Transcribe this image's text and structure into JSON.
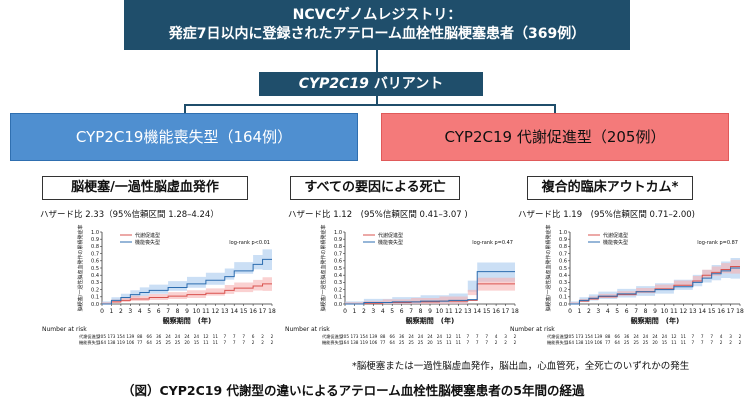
{
  "header": {
    "registry_line1": "NCVCゲノムレジストリ：",
    "registry_line2": "発症7日以内に登録されたアテローム血栓性脳梗塞患者（369例）",
    "variant_italic": "CYP2C19",
    "variant_rest": " バリアント"
  },
  "groups": {
    "lof_label": "CYP2C19機能喪失型（164例）",
    "gof_label": "CYP2C19 代謝促進型（205例）"
  },
  "common": {
    "y_axis_label": "脳梗塞/一過性脳虚血発作の累積発症率",
    "x_axis_label": "観察期間　(年)",
    "legend_gof": "代謝促進型",
    "legend_lof": "機能喪失型",
    "number_at_risk": "Number at risk",
    "risk_row_gof_label": "代謝促進型",
    "risk_row_lof_label": "機能喪失型"
  },
  "colors": {
    "dark_navy": "#1f4e6b",
    "lof_blue": "#4f8fd0",
    "gof_red": "#f47a7a",
    "curve_red": "#d9534f",
    "curve_blue": "#2c6db0",
    "ci_red": "#f6b3b3",
    "ci_blue": "#a9c9ef"
  },
  "chart_data": [
    {
      "type": "line",
      "title": "脳梗塞/一過性脳虚血発作",
      "hazard_ratio": "ハザード比 2.33（95%信頼区間 1.28–4.24）",
      "logrank": "log-rank p<0.01",
      "x_ticks": [
        "0",
        "1",
        "2",
        "3",
        "4",
        "5",
        "6",
        "7",
        "8",
        "9",
        "10",
        "11",
        "12",
        "13",
        "14",
        "15",
        "16",
        "17",
        "18"
      ],
      "y_ticks": [
        "0.0",
        "0.1",
        "0.2",
        "0.3",
        "0.4",
        "0.5",
        "0.6",
        "0.7",
        "0.8",
        "0.9",
        "1.0"
      ],
      "xlim": [
        0,
        18
      ],
      "ylim": [
        0,
        1
      ],
      "series": [
        {
          "name": "代謝促進型",
          "color": "#d9534f",
          "x": [
            0,
            1,
            2,
            3,
            5,
            7,
            9,
            11,
            13,
            14,
            16,
            17,
            18
          ],
          "y": [
            0.0,
            0.03,
            0.05,
            0.07,
            0.09,
            0.11,
            0.13,
            0.15,
            0.19,
            0.22,
            0.25,
            0.28,
            0.28
          ]
        },
        {
          "name": "機能喪失型",
          "color": "#2c6db0",
          "x": [
            0,
            1,
            2,
            3,
            4,
            5,
            7,
            9,
            11,
            13,
            14,
            16,
            17,
            18
          ],
          "y": [
            0.0,
            0.05,
            0.09,
            0.13,
            0.16,
            0.19,
            0.23,
            0.28,
            0.33,
            0.38,
            0.46,
            0.55,
            0.62,
            0.62
          ]
        }
      ],
      "risk_table": {
        "gof": [
          "205",
          "173",
          "154",
          "139",
          "88",
          "66",
          "36",
          "24",
          "24",
          "24",
          "24",
          "12",
          "11",
          "7",
          "7",
          "7",
          "6",
          "2",
          "2"
        ],
        "lof": [
          "164",
          "138",
          "119",
          "106",
          "77",
          "64",
          "25",
          "25",
          "25",
          "20",
          "15",
          "11",
          "11",
          "7",
          "7",
          "7",
          "2",
          "2",
          "2"
        ]
      }
    },
    {
      "type": "line",
      "title": "すべての要因による死亡",
      "hazard_ratio": "ハザード比 1.12　(95%信頼区間 0.41–3.07 )",
      "logrank": "log-rank p=0.47",
      "x_ticks": [
        "0",
        "1",
        "2",
        "3",
        "4",
        "5",
        "6",
        "7",
        "8",
        "9",
        "10",
        "11",
        "12",
        "13",
        "14",
        "15",
        "16",
        "17",
        "18"
      ],
      "y_ticks": [
        "0.0",
        "0.1",
        "0.2",
        "0.3",
        "0.4",
        "0.5",
        "0.6",
        "0.7",
        "0.8",
        "0.9",
        "1.0"
      ],
      "xlim": [
        0,
        18
      ],
      "ylim": [
        0,
        1
      ],
      "series": [
        {
          "name": "代謝促進型",
          "color": "#d9534f",
          "x": [
            0,
            2,
            4,
            7,
            10,
            13,
            14,
            18
          ],
          "y": [
            0.0,
            0.01,
            0.02,
            0.03,
            0.04,
            0.05,
            0.28,
            0.28
          ]
        },
        {
          "name": "機能喪失型",
          "color": "#2c6db0",
          "x": [
            0,
            2,
            5,
            8,
            11,
            13,
            14,
            18
          ],
          "y": [
            0.0,
            0.02,
            0.03,
            0.04,
            0.05,
            0.06,
            0.45,
            0.45
          ]
        }
      ],
      "risk_table": {
        "gof": [
          "205",
          "173",
          "154",
          "139",
          "88",
          "66",
          "36",
          "24",
          "24",
          "24",
          "24",
          "12",
          "11",
          "7",
          "7",
          "7",
          "4",
          "3",
          "2"
        ],
        "lof": [
          "164",
          "138",
          "119",
          "106",
          "77",
          "64",
          "25",
          "25",
          "25",
          "20",
          "15",
          "11",
          "11",
          "7",
          "7",
          "7",
          "2",
          "2",
          "2"
        ]
      }
    },
    {
      "type": "line",
      "title": "複合的臨床アウトカム*",
      "hazard_ratio": "ハザード比 1.19　(95%信頼区間 0.71–2.00)",
      "logrank": "log-rank p=0.87",
      "x_ticks": [
        "0",
        "1",
        "2",
        "3",
        "4",
        "5",
        "6",
        "7",
        "8",
        "9",
        "10",
        "11",
        "12",
        "13",
        "14",
        "15",
        "16",
        "17",
        "18"
      ],
      "y_ticks": [
        "0.0",
        "0.1",
        "0.2",
        "0.3",
        "0.4",
        "0.5",
        "0.6",
        "0.7",
        "0.8",
        "0.9",
        "1.0"
      ],
      "xlim": [
        0,
        18
      ],
      "ylim": [
        0,
        1
      ],
      "series": [
        {
          "name": "代謝促進型",
          "color": "#d9534f",
          "x": [
            0,
            1,
            2,
            3,
            5,
            7,
            9,
            11,
            13,
            14,
            15,
            16,
            17,
            18
          ],
          "y": [
            0.0,
            0.04,
            0.07,
            0.1,
            0.13,
            0.17,
            0.21,
            0.26,
            0.32,
            0.4,
            0.44,
            0.48,
            0.52,
            0.52
          ]
        },
        {
          "name": "機能喪失型",
          "color": "#2c6db0",
          "x": [
            0,
            1,
            2,
            3,
            5,
            7,
            9,
            11,
            13,
            14,
            15,
            16,
            17,
            18
          ],
          "y": [
            0.0,
            0.05,
            0.08,
            0.11,
            0.14,
            0.17,
            0.2,
            0.24,
            0.3,
            0.36,
            0.42,
            0.46,
            0.5,
            0.5
          ]
        }
      ],
      "risk_table": {
        "gof": [
          "205",
          "173",
          "154",
          "139",
          "88",
          "66",
          "36",
          "24",
          "24",
          "24",
          "24",
          "12",
          "11",
          "7",
          "7",
          "7",
          "4",
          "3",
          "2"
        ],
        "lof": [
          "164",
          "138",
          "119",
          "106",
          "77",
          "64",
          "25",
          "25",
          "25",
          "20",
          "15",
          "11",
          "11",
          "7",
          "7",
          "7",
          "2",
          "2",
          "2"
        ]
      }
    }
  ],
  "footer": {
    "footnote": "*脳梗塞または一過性脳虚血発作，脳出血，心血管死，全死亡のいずれかの発生",
    "caption": "（図）CYP2C19 代謝型の違いによるアテローム血栓性脳梗塞患者の5年間の経過"
  }
}
